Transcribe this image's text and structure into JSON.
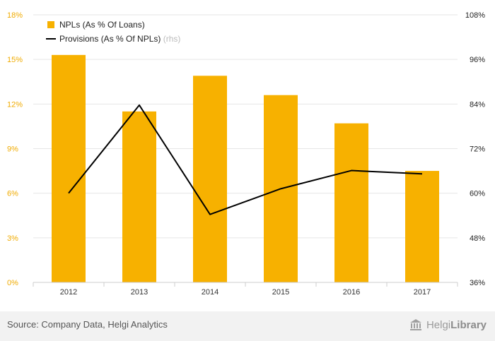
{
  "chart_data": {
    "type": "bar",
    "categories": [
      "2012",
      "2013",
      "2014",
      "2015",
      "2016",
      "2017"
    ],
    "series": [
      {
        "name": "NPLs (As % Of Loans)",
        "type": "bar",
        "axis": "left",
        "color": "#f7b100",
        "values": [
          15.3,
          11.5,
          13.9,
          12.6,
          10.7,
          7.5
        ]
      },
      {
        "name": "Provisions (As % Of NPLs)",
        "name_note": "(rhs)",
        "type": "line",
        "axis": "right",
        "color": "#000000",
        "values": [
          60.0,
          83.7,
          54.3,
          61.2,
          66.1,
          65.2
        ]
      }
    ],
    "y_left": {
      "ylim": [
        0,
        18
      ],
      "ticks": [
        0,
        3,
        6,
        9,
        12,
        15,
        18
      ],
      "tick_labels": [
        "0%",
        "3%",
        "6%",
        "9%",
        "12%",
        "15%",
        "18%"
      ]
    },
    "y_right": {
      "ylim": [
        36,
        108
      ],
      "ticks": [
        36,
        48,
        60,
        72,
        84,
        96,
        108
      ],
      "tick_labels": [
        "36%",
        "48%",
        "60%",
        "72%",
        "84%",
        "96%",
        "108%"
      ]
    },
    "grid": true,
    "legend_position": "top-left"
  },
  "footer": {
    "source": "Source: Company Data, Helgi Analytics",
    "brand_prefix": "Helgi",
    "brand_suffix": "Library"
  }
}
